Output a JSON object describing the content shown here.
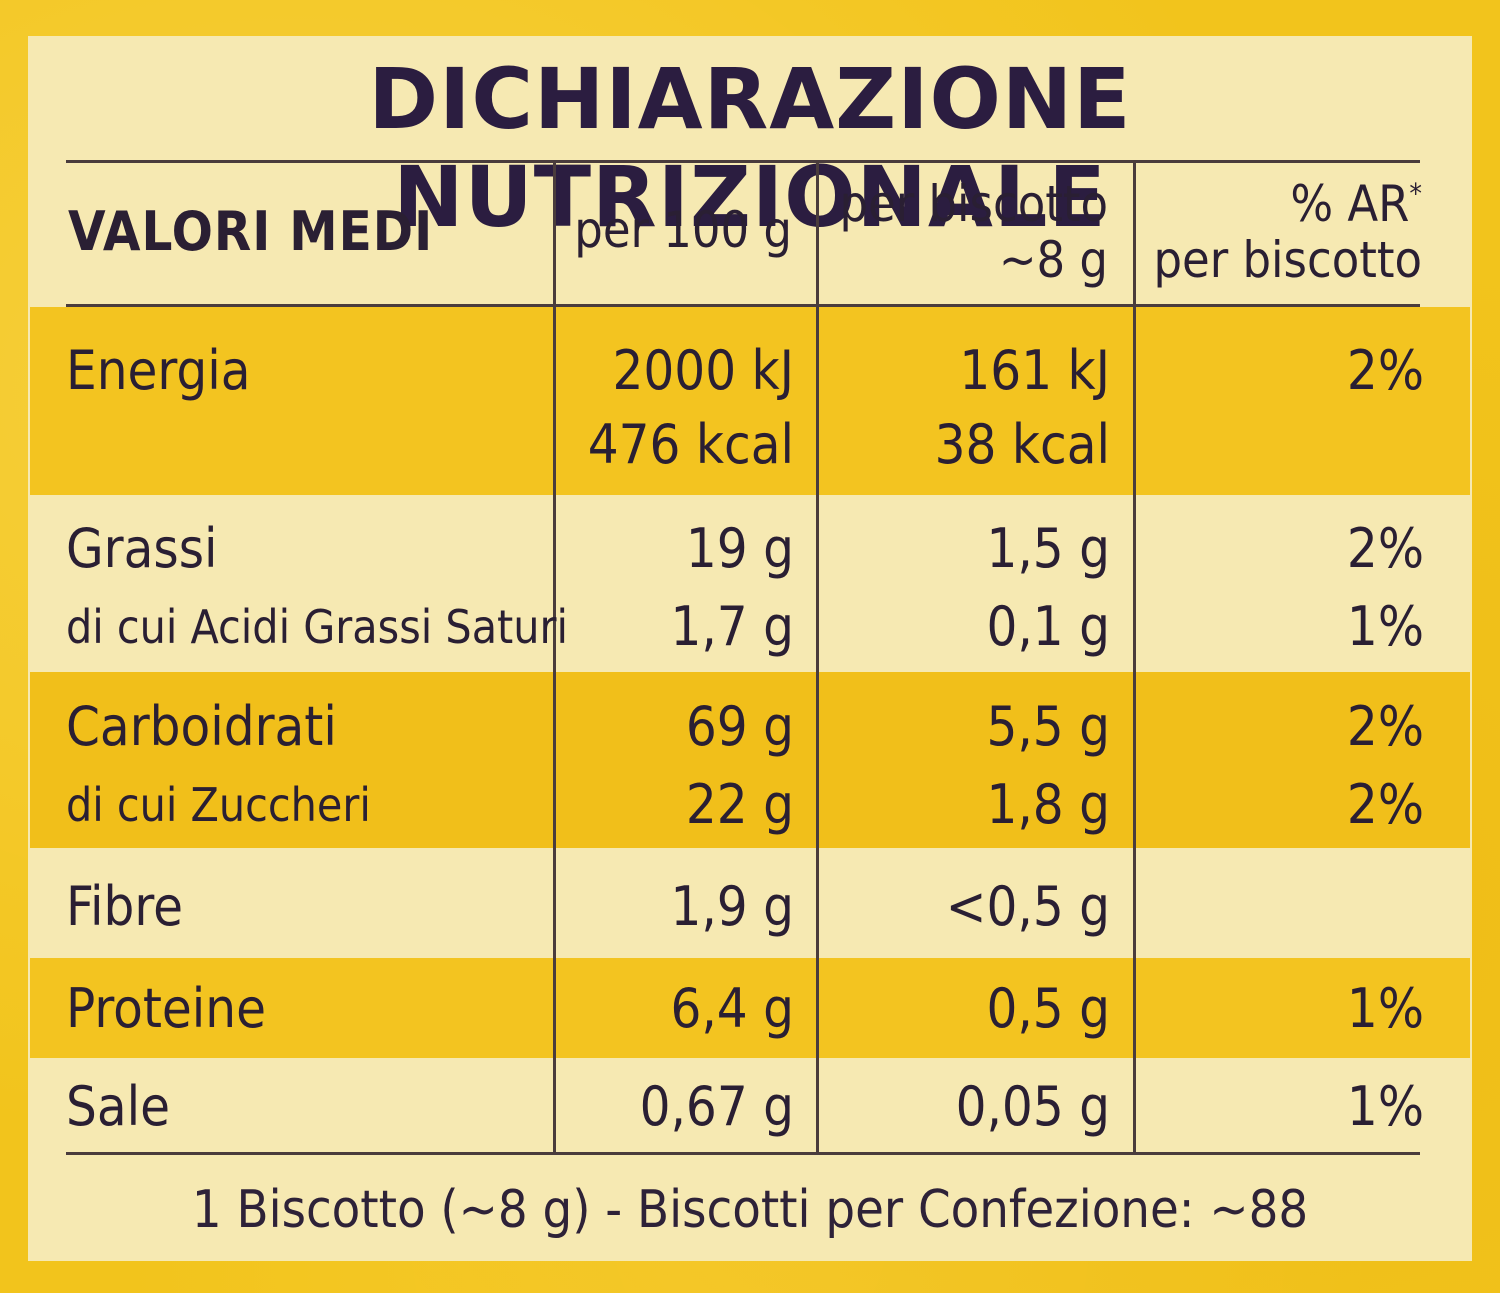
{
  "title": "DICHIARAZIONE NUTRIZIONALE",
  "header": {
    "col0": "VALORI MEDI",
    "col1": "per 100 g",
    "col2_line1": "per biscotto",
    "col2_line2": "~8 g",
    "col3_line1": "% AR",
    "col3_sup": "*",
    "col3_line2": "per biscotto"
  },
  "rows": [
    {
      "label": "Energia",
      "per100": "2000 kJ",
      "per100_b": "476 kcal",
      "perbisc": "161 kJ",
      "perbisc_b": "38 kcal",
      "ar": "2%"
    },
    {
      "label": "Grassi",
      "per100": "19 g",
      "perbisc": "1,5 g",
      "ar": "2%"
    },
    {
      "label": "di cui Acidi Grassi Saturi",
      "per100": "1,7 g",
      "perbisc": "0,1 g",
      "ar": "1%"
    },
    {
      "label": "Carboidrati",
      "per100": "69 g",
      "perbisc": "5,5 g",
      "ar": "2%"
    },
    {
      "label": "di cui Zuccheri",
      "per100": "22 g",
      "perbisc": "1,8 g",
      "ar": "2%"
    },
    {
      "label": "Fibre",
      "per100": "1,9 g",
      "perbisc": "<0,5 g",
      "ar": ""
    },
    {
      "label": "Proteine",
      "per100": "6,4 g",
      "perbisc": "0,5 g",
      "ar": "1%"
    },
    {
      "label": "Sale",
      "per100": "0,67 g",
      "perbisc": "0,05 g",
      "ar": "1%"
    }
  ],
  "footer": "1 Biscotto (~8 g) - Biscotti per Confezione: ~88"
}
